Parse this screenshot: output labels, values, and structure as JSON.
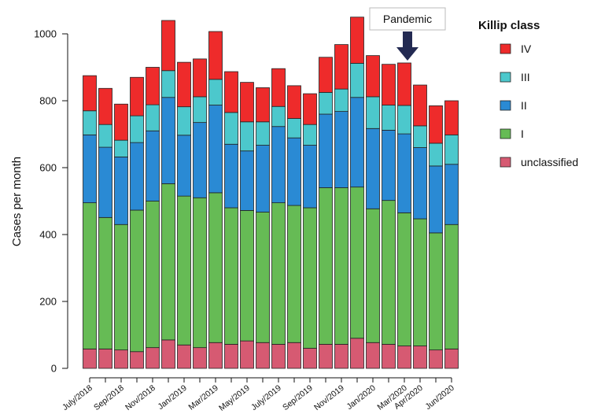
{
  "chart_data": {
    "type": "bar",
    "stacked": true,
    "ylabel": "Cases per month",
    "ylim": [
      0,
      1050
    ],
    "yticks": [
      0,
      200,
      400,
      600,
      800,
      1000
    ],
    "months": 24,
    "xtick_labels": [
      {
        "month": 0,
        "label": "July/2018"
      },
      {
        "month": 2,
        "label": "Sep/2018"
      },
      {
        "month": 4,
        "label": "Nov/2018"
      },
      {
        "month": 6,
        "label": "Jan/2019"
      },
      {
        "month": 8,
        "label": "Mar/2019"
      },
      {
        "month": 10,
        "label": "May/2019"
      },
      {
        "month": 12,
        "label": "July/2019"
      },
      {
        "month": 14,
        "label": "Sep/2019"
      },
      {
        "month": 16,
        "label": "Nov/2019"
      },
      {
        "month": 18,
        "label": "Jan/2020"
      },
      {
        "month": 20,
        "label": "Mar/2020"
      },
      {
        "month": 21,
        "label": "Apr/2020"
      },
      {
        "month": 23,
        "label": "Jun/2020"
      }
    ],
    "series": [
      {
        "name": "unclassified",
        "color": "#d65a72",
        "values": [
          58,
          58,
          55,
          50,
          62,
          85,
          70,
          62,
          77,
          72,
          82,
          77,
          72,
          77,
          60,
          72,
          72,
          90,
          77,
          72,
          67,
          67,
          55,
          58
        ]
      },
      {
        "name": "I",
        "color": "#66bb55",
        "values": [
          437,
          393,
          375,
          423,
          438,
          467,
          445,
          448,
          448,
          408,
          390,
          390,
          423,
          410,
          420,
          468,
          468,
          452,
          400,
          430,
          398,
          380,
          350,
          372
        ]
      },
      {
        "name": "II",
        "color": "#2a8ad4",
        "values": [
          203,
          210,
          202,
          202,
          210,
          258,
          182,
          225,
          262,
          190,
          178,
          200,
          228,
          202,
          187,
          220,
          228,
          268,
          240,
          210,
          236,
          213,
          200,
          180
        ]
      },
      {
        "name": "III",
        "color": "#4cc8cc",
        "values": [
          72,
          68,
          50,
          80,
          78,
          80,
          85,
          77,
          77,
          95,
          87,
          70,
          60,
          58,
          62,
          65,
          67,
          102,
          95,
          75,
          85,
          65,
          68,
          88
        ]
      },
      {
        "name": "IV",
        "color": "#ee2b2b",
        "values": [
          105,
          108,
          108,
          115,
          112,
          150,
          133,
          113,
          143,
          122,
          118,
          102,
          113,
          98,
          92,
          105,
          133,
          138,
          123,
          122,
          127,
          122,
          112,
          102
        ]
      }
    ],
    "legend": {
      "title": "Killip class",
      "placement": "right",
      "order": [
        "IV",
        "III",
        "II",
        "I",
        "unclassified"
      ]
    },
    "annotation": {
      "text": "Pandemic",
      "arrow_month": 20
    }
  }
}
